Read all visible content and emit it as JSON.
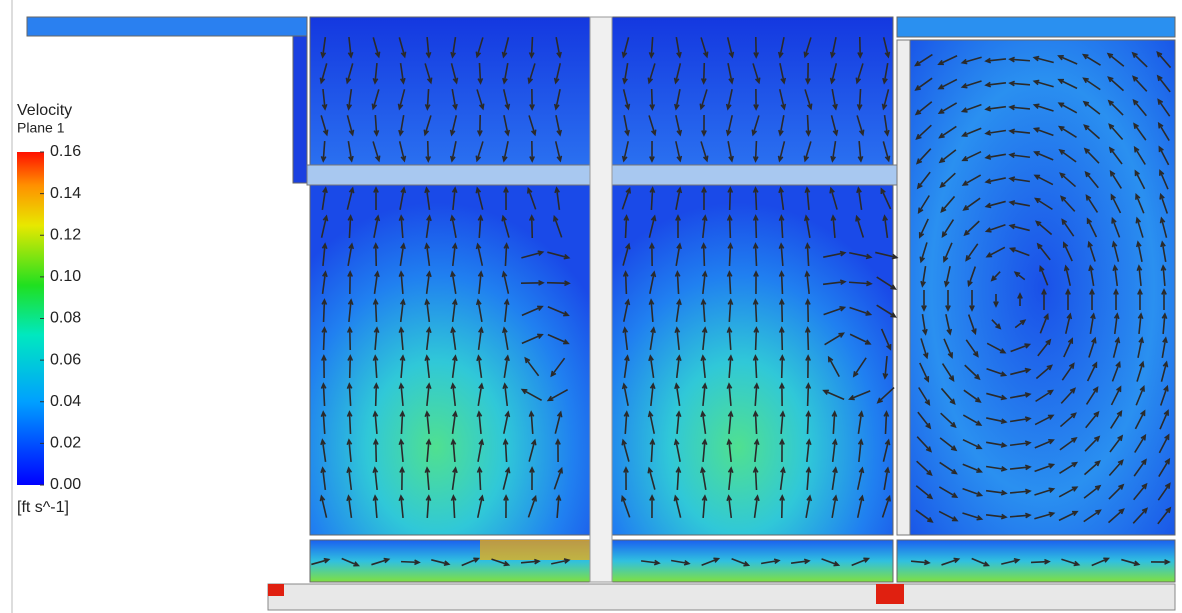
{
  "legend": {
    "title": "Velocity",
    "subtitle": "Plane 1",
    "unit": "[ft s^-1]",
    "lim": [
      0,
      0.16
    ],
    "ticks": [
      0.16,
      0.14,
      0.12,
      {
        "value": 0.1,
        "label": "0.10"
      },
      0.08,
      0.06,
      0.04,
      0.02,
      {
        "value": 0,
        "label": "0.00"
      }
    ]
  }
}
